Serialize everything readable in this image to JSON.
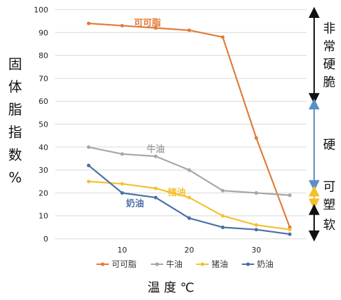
{
  "chart_data": {
    "type": "line",
    "title": "",
    "ylabel": "固体脂指数%",
    "xlabel": "温 度 ℃",
    "x_ticks": [
      10,
      20,
      30
    ],
    "y_ticks": [
      0,
      10,
      20,
      30,
      40,
      50,
      60,
      70,
      80,
      90,
      100
    ],
    "xlim": [
      0,
      37.5
    ],
    "ylim": [
      0,
      100
    ],
    "grid": "horizontal",
    "legend_position": "bottom",
    "series": [
      {
        "name": "可可脂",
        "color": "#e07b39",
        "x": [
          5,
          10,
          15,
          20,
          25,
          30,
          35
        ],
        "y": [
          94,
          93,
          92,
          91,
          88,
          44,
          5
        ]
      },
      {
        "name": "牛油",
        "color": "#a6a6a6",
        "x": [
          5,
          10,
          15,
          20,
          25,
          30,
          35
        ],
        "y": [
          40,
          37,
          36,
          30,
          21,
          20,
          19
        ]
      },
      {
        "name": "猪油",
        "color": "#f2c12e",
        "x": [
          5,
          10,
          15,
          20,
          25,
          30,
          35
        ],
        "y": [
          25,
          24,
          22,
          18,
          10,
          6,
          4
        ]
      },
      {
        "name": "奶油",
        "color": "#4a6fa5",
        "x": [
          5,
          10,
          15,
          20,
          25,
          30,
          35
        ],
        "y": [
          32,
          20,
          18,
          9,
          5,
          4,
          2
        ]
      }
    ],
    "series_labels": [
      {
        "text": "可可脂",
        "series": 0
      },
      {
        "text": "牛油",
        "series": 1
      },
      {
        "text": "猪油",
        "series": 2
      },
      {
        "text": "奶油",
        "series": 3
      }
    ],
    "texture_bands": [
      {
        "label": "非常硬脆",
        "from": 100,
        "to": 60,
        "arrow_color": "#111111"
      },
      {
        "label": "硬",
        "from": 60,
        "to": 22,
        "arrow_color": "#5b8fc7"
      },
      {
        "label": "可塑",
        "from": 22,
        "to": 14,
        "arrow_color": "#f2c12e"
      },
      {
        "label": "软",
        "from": 14,
        "to": 0,
        "arrow_color": "#111111"
      }
    ]
  }
}
